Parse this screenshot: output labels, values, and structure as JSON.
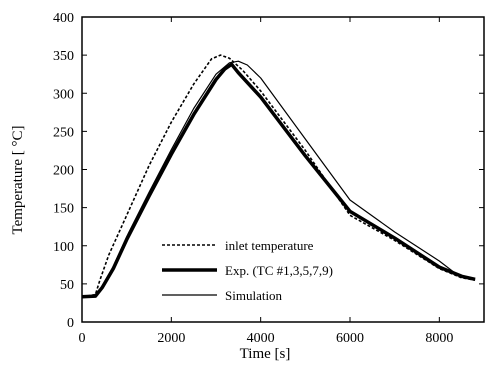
{
  "chart_data": {
    "type": "line",
    "xlabel": "Time [s]",
    "ylabel": "Temperature [  °C]",
    "xlim": [
      0,
      9000
    ],
    "ylim": [
      0,
      400
    ],
    "xticks": [
      0,
      2000,
      4000,
      6000,
      8000
    ],
    "yticks": [
      0,
      50,
      100,
      150,
      200,
      250,
      300,
      350,
      400
    ],
    "grid": false,
    "legend_position": "lower-left",
    "series": [
      {
        "name": "inlet temperature",
        "style": "dashed",
        "color": "#000000",
        "x": [
          0,
          300,
          400,
          600,
          1000,
          1500,
          2000,
          2500,
          2900,
          3100,
          3300,
          3600,
          4000,
          5000,
          6000,
          7000,
          8000,
          8500,
          8800
        ],
        "y": [
          33,
          36,
          55,
          88,
          140,
          205,
          262,
          312,
          345,
          350,
          346,
          330,
          303,
          225,
          140,
          107,
          70,
          58,
          55
        ]
      },
      {
        "name": "Exp. (TC #1,3,5,7,9)",
        "style": "thick",
        "color": "#000000",
        "x": [
          0,
          300,
          450,
          700,
          1000,
          1500,
          2000,
          2500,
          3000,
          3200,
          3350,
          3500,
          4000,
          5000,
          6000,
          7000,
          8000,
          8500,
          8800
        ],
        "y": [
          33,
          34,
          45,
          70,
          108,
          165,
          220,
          272,
          318,
          332,
          338,
          327,
          295,
          218,
          145,
          110,
          72,
          60,
          56
        ]
      },
      {
        "name": "Simulation",
        "style": "thin",
        "color": "#000000",
        "x": [
          0,
          300,
          450,
          700,
          1000,
          1500,
          2000,
          2500,
          3000,
          3300,
          3500,
          3700,
          4000,
          5000,
          6000,
          7000,
          8000,
          8400,
          8800
        ],
        "y": [
          33,
          34,
          47,
          73,
          112,
          170,
          226,
          280,
          325,
          340,
          342,
          337,
          320,
          240,
          160,
          118,
          80,
          62,
          56
        ]
      }
    ]
  }
}
